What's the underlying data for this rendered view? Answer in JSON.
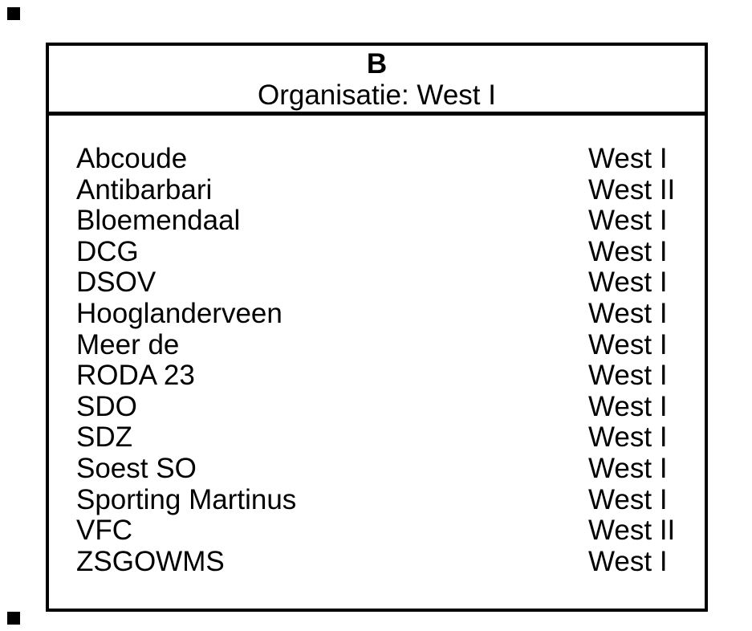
{
  "header": {
    "title": "B",
    "subtitle": "Organisatie: West I"
  },
  "table": {
    "rows": [
      {
        "club": "Abcoude",
        "org": "West I"
      },
      {
        "club": "Antibarbari",
        "org": "West II"
      },
      {
        "club": "Bloemendaal",
        "org": "West I"
      },
      {
        "club": "DCG",
        "org": "West I"
      },
      {
        "club": "DSOV",
        "org": "West I"
      },
      {
        "club": "Hooglanderveen",
        "org": "West I"
      },
      {
        "club": "Meer de",
        "org": "West I"
      },
      {
        "club": "RODA 23",
        "org": "West I"
      },
      {
        "club": "SDO",
        "org": "West I"
      },
      {
        "club": "SDZ",
        "org": "West I"
      },
      {
        "club": "Soest SO",
        "org": "West I"
      },
      {
        "club": "Sporting Martinus",
        "org": "West I"
      },
      {
        "club": "VFC",
        "org": "West II"
      },
      {
        "club": "ZSGOWMS",
        "org": "West I"
      }
    ]
  },
  "colors": {
    "background": "#ffffff",
    "border": "#000000",
    "text": "#000000"
  }
}
